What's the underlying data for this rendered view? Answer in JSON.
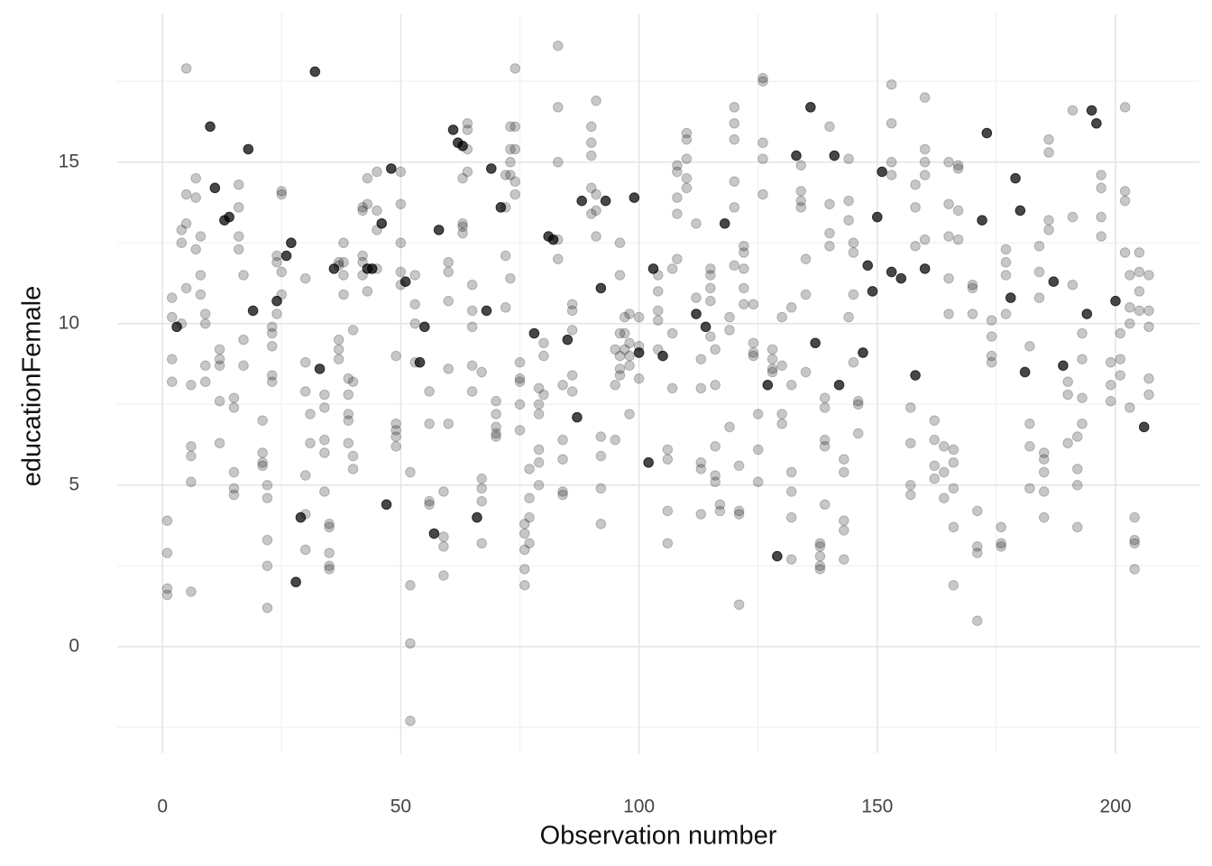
{
  "chart_data": {
    "type": "scatter",
    "x_label": "Observation number",
    "y_label": "educationFemale",
    "xlim": [
      -9.5,
      217.6
    ],
    "ylim": [
      -3.3,
      19.6
    ],
    "xticks": [
      0,
      50,
      100,
      150,
      200
    ],
    "yticks": [
      0,
      5,
      10,
      15
    ],
    "x_minor_ticks": [
      25,
      75,
      125,
      175
    ],
    "y_minor_ticks": [
      -2.5,
      2.5,
      7.5,
      12.5,
      17.5
    ],
    "grid": true,
    "series": [
      {
        "color": "#000000",
        "alpha": 0.22,
        "x": [
          1,
          1,
          1,
          1,
          2,
          2,
          2,
          2,
          4,
          4,
          4,
          5,
          5,
          5,
          5,
          6,
          6,
          6,
          6,
          6,
          7,
          7,
          7,
          8,
          8,
          8,
          9,
          9,
          9,
          9,
          12,
          12,
          12,
          12,
          12,
          15,
          15,
          15,
          15,
          15,
          16,
          16,
          16,
          16,
          17,
          17,
          17,
          21,
          21,
          21,
          21,
          22,
          22,
          22,
          22,
          22,
          23,
          23,
          23,
          23,
          23,
          24,
          24,
          24,
          25,
          25,
          25,
          25,
          30,
          30,
          30,
          30,
          30,
          30,
          31,
          31,
          34,
          34,
          34,
          34,
          34,
          35,
          35,
          35,
          35,
          35,
          37,
          37,
          37,
          37,
          37,
          38,
          38,
          38,
          38,
          39,
          39,
          39,
          39,
          39,
          40,
          40,
          40,
          40,
          42,
          42,
          42,
          42,
          42,
          43,
          43,
          43,
          45,
          45,
          45,
          45,
          49,
          49,
          49,
          49,
          49,
          50,
          50,
          50,
          50,
          50,
          52,
          52,
          52,
          52,
          53,
          53,
          53,
          53,
          56,
          56,
          56,
          56,
          59,
          59,
          59,
          59,
          60,
          60,
          60,
          60,
          60,
          63,
          63,
          63,
          63,
          64,
          64,
          64,
          64,
          65,
          65,
          65,
          65,
          65,
          67,
          67,
          67,
          67,
          67,
          70,
          70,
          70,
          70,
          70,
          72,
          72,
          72,
          72,
          73,
          73,
          73,
          73,
          73,
          74,
          74,
          74,
          74,
          74,
          75,
          75,
          75,
          75,
          75,
          76,
          76,
          76,
          76,
          76,
          77,
          77,
          77,
          77,
          79,
          79,
          79,
          79,
          79,
          79,
          80,
          80,
          80,
          83,
          83,
          83,
          83,
          83,
          84,
          84,
          84,
          84,
          84,
          86,
          86,
          86,
          86,
          86,
          90,
          90,
          90,
          90,
          90,
          91,
          91,
          91,
          91,
          92,
          92,
          92,
          92,
          95,
          95,
          95,
          96,
          96,
          96,
          96,
          96,
          96,
          97,
          97,
          97,
          98,
          98,
          98,
          98,
          98,
          100,
          100,
          100,
          104,
          104,
          104,
          104,
          104,
          106,
          106,
          106,
          106,
          107,
          107,
          107,
          108,
          108,
          108,
          108,
          108,
          110,
          110,
          110,
          110,
          110,
          112,
          112,
          113,
          113,
          113,
          113,
          113,
          115,
          115,
          115,
          115,
          115,
          116,
          116,
          116,
          116,
          116,
          117,
          117,
          119,
          119,
          119,
          120,
          120,
          120,
          120,
          120,
          120,
          121,
          121,
          121,
          121,
          122,
          122,
          122,
          122,
          122,
          124,
          124,
          124,
          124,
          125,
          125,
          125,
          126,
          126,
          126,
          126,
          126,
          128,
          128,
          128,
          128,
          130,
          130,
          130,
          130,
          132,
          132,
          132,
          132,
          132,
          132,
          134,
          134,
          134,
          134,
          135,
          135,
          135,
          138,
          138,
          138,
          138,
          138,
          139,
          139,
          139,
          139,
          139,
          140,
          140,
          140,
          140,
          143,
          143,
          143,
          143,
          143,
          144,
          144,
          144,
          144,
          145,
          145,
          145,
          145,
          146,
          146,
          146,
          153,
          153,
          153,
          153,
          157,
          157,
          157,
          157,
          158,
          158,
          158,
          160,
          160,
          160,
          160,
          160,
          162,
          162,
          162,
          162,
          164,
          164,
          164,
          165,
          165,
          165,
          165,
          165,
          166,
          166,
          166,
          166,
          166,
          167,
          167,
          167,
          167,
          170,
          170,
          170,
          171,
          171,
          171,
          171,
          174,
          174,
          174,
          174,
          176,
          176,
          176,
          177,
          177,
          177,
          177,
          182,
          182,
          182,
          182,
          184,
          184,
          184,
          185,
          185,
          185,
          185,
          185,
          186,
          186,
          186,
          186,
          190,
          190,
          190,
          191,
          191,
          191,
          192,
          192,
          192,
          192,
          193,
          193,
          193,
          193,
          197,
          197,
          197,
          197,
          199,
          199,
          199,
          201,
          201,
          201,
          202,
          202,
          202,
          202,
          203,
          203,
          203,
          203,
          204,
          204,
          204,
          204,
          205,
          205,
          205,
          205,
          207,
          207,
          207,
          207,
          207
        ],
        "y": [
          3.9,
          2.9,
          1.8,
          1.6,
          10.8,
          10.2,
          8.9,
          8.2,
          12.9,
          12.5,
          10.0,
          17.9,
          14.0,
          13.1,
          11.1,
          8.1,
          6.2,
          5.9,
          5.1,
          1.7,
          14.5,
          13.9,
          12.3,
          12.7,
          11.5,
          10.9,
          10.3,
          10.0,
          8.7,
          8.2,
          9.2,
          8.9,
          8.7,
          7.6,
          6.3,
          7.7,
          7.4,
          5.4,
          4.9,
          4.7,
          14.3,
          13.6,
          12.7,
          12.3,
          11.5,
          9.5,
          8.7,
          7.0,
          6.0,
          5.7,
          5.6,
          5.0,
          4.6,
          3.3,
          2.5,
          1.2,
          9.9,
          9.7,
          9.3,
          8.4,
          8.2,
          12.1,
          11.9,
          10.3,
          14.1,
          14.0,
          11.6,
          10.9,
          11.4,
          8.8,
          7.9,
          5.3,
          4.1,
          3.0,
          7.2,
          6.3,
          7.8,
          7.4,
          6.4,
          6.0,
          4.8,
          3.8,
          3.7,
          2.9,
          2.5,
          2.4,
          11.9,
          11.8,
          9.5,
          9.2,
          8.9,
          12.5,
          11.9,
          11.5,
          10.9,
          8.3,
          7.8,
          7.2,
          7.0,
          6.3,
          9.8,
          8.2,
          5.9,
          5.5,
          13.6,
          13.5,
          12.1,
          11.9,
          11.5,
          14.5,
          13.7,
          11.0,
          14.7,
          13.5,
          12.9,
          11.7,
          9.0,
          6.9,
          6.7,
          6.5,
          6.2,
          14.7,
          13.7,
          12.5,
          11.6,
          11.2,
          5.4,
          1.9,
          0.1,
          -2.3,
          11.5,
          10.6,
          10.0,
          8.8,
          7.9,
          6.9,
          4.5,
          4.4,
          4.8,
          3.4,
          3.1,
          2.2,
          11.9,
          11.6,
          10.7,
          8.6,
          6.9,
          14.5,
          13.1,
          13.0,
          12.8,
          16.2,
          16.0,
          15.4,
          14.7,
          11.2,
          10.4,
          9.9,
          8.7,
          7.9,
          8.5,
          5.2,
          4.9,
          4.5,
          3.2,
          7.6,
          7.2,
          6.8,
          6.6,
          6.5,
          14.6,
          13.6,
          12.1,
          10.5,
          16.1,
          15.4,
          15.0,
          14.6,
          11.4,
          17.9,
          16.1,
          15.4,
          14.4,
          14.0,
          8.8,
          8.3,
          8.2,
          7.5,
          6.7,
          3.8,
          3.5,
          3.0,
          2.4,
          1.9,
          5.5,
          4.6,
          4.0,
          3.2,
          8.0,
          7.5,
          7.2,
          6.1,
          5.7,
          5.0,
          9.4,
          9.0,
          7.8,
          18.6,
          16.7,
          15.0,
          12.6,
          12.0,
          8.1,
          6.4,
          5.8,
          4.8,
          4.7,
          10.6,
          10.4,
          9.8,
          8.4,
          7.9,
          16.1,
          15.6,
          15.2,
          14.2,
          13.4,
          16.9,
          14.0,
          13.5,
          12.7,
          6.5,
          5.9,
          4.9,
          3.8,
          9.2,
          8.1,
          6.4,
          12.5,
          11.5,
          9.7,
          9.0,
          8.6,
          8.4,
          10.2,
          9.7,
          9.2,
          10.3,
          9.4,
          9.0,
          8.7,
          7.2,
          10.2,
          9.3,
          8.3,
          11.5,
          11.0,
          10.4,
          10.1,
          9.2,
          6.1,
          5.8,
          4.2,
          3.2,
          11.7,
          9.7,
          8.0,
          14.9,
          14.7,
          13.9,
          13.4,
          12.0,
          15.9,
          15.7,
          15.1,
          14.5,
          14.2,
          13.1,
          10.8,
          8.9,
          8.0,
          5.7,
          5.5,
          4.1,
          11.7,
          11.5,
          11.1,
          10.7,
          9.6,
          9.2,
          8.1,
          6.2,
          5.3,
          5.1,
          4.4,
          4.2,
          10.2,
          9.8,
          6.8,
          16.7,
          16.2,
          15.7,
          14.4,
          13.6,
          11.8,
          5.6,
          4.2,
          4.1,
          1.3,
          12.4,
          12.2,
          11.7,
          11.1,
          10.6,
          10.6,
          9.4,
          9.1,
          9.0,
          7.2,
          6.1,
          5.1,
          17.6,
          17.5,
          15.6,
          15.1,
          14.0,
          9.2,
          8.9,
          8.6,
          8.5,
          10.2,
          8.7,
          7.2,
          6.9,
          10.5,
          8.1,
          5.4,
          4.8,
          4.0,
          2.7,
          14.9,
          14.1,
          13.8,
          13.6,
          12.0,
          10.9,
          8.5,
          3.2,
          3.1,
          2.8,
          2.5,
          2.4,
          7.7,
          7.4,
          6.4,
          6.2,
          4.4,
          16.1,
          13.7,
          12.8,
          12.4,
          5.8,
          5.4,
          3.9,
          3.6,
          2.7,
          15.1,
          13.8,
          13.2,
          10.2,
          12.5,
          12.2,
          10.9,
          8.8,
          7.6,
          7.5,
          6.6,
          17.4,
          16.2,
          15.0,
          14.6,
          7.4,
          6.3,
          5.0,
          4.7,
          14.3,
          13.6,
          12.4,
          17.0,
          15.4,
          15.0,
          14.6,
          12.6,
          7.0,
          6.4,
          5.6,
          5.2,
          6.2,
          5.4,
          4.6,
          15.0,
          13.7,
          12.7,
          11.4,
          10.3,
          6.1,
          5.7,
          4.9,
          3.7,
          1.9,
          14.9,
          14.8,
          13.5,
          12.6,
          11.2,
          11.1,
          10.3,
          4.2,
          3.1,
          2.9,
          0.8,
          10.1,
          9.6,
          9.0,
          8.8,
          3.7,
          3.2,
          3.1,
          12.3,
          11.9,
          11.5,
          10.3,
          9.3,
          6.9,
          6.2,
          4.9,
          12.4,
          11.6,
          10.8,
          6.0,
          5.8,
          5.4,
          4.8,
          4.0,
          15.7,
          15.3,
          13.2,
          12.9,
          8.2,
          7.8,
          6.3,
          16.6,
          13.3,
          11.2,
          6.5,
          5.5,
          5.0,
          3.7,
          9.7,
          8.9,
          7.7,
          6.9,
          14.6,
          14.2,
          13.3,
          12.7,
          8.8,
          8.1,
          7.6,
          9.7,
          8.9,
          8.4,
          16.7,
          14.1,
          13.8,
          12.2,
          11.5,
          10.5,
          10.0,
          7.4,
          4.0,
          3.3,
          3.2,
          2.4,
          12.2,
          11.6,
          11.0,
          10.4,
          11.5,
          10.4,
          9.9,
          8.3,
          7.8
        ]
      },
      {
        "color": "#000000",
        "alpha": 0.72,
        "x": [
          3,
          10,
          11,
          13,
          14,
          18,
          19,
          24,
          26,
          27,
          28,
          29,
          32,
          33,
          36,
          43,
          44,
          46,
          47,
          48,
          51,
          54,
          55,
          57,
          58,
          61,
          62,
          63,
          66,
          68,
          69,
          71,
          78,
          81,
          82,
          85,
          87,
          88,
          92,
          93,
          99,
          100,
          102,
          103,
          105,
          112,
          114,
          118,
          127,
          129,
          133,
          136,
          137,
          141,
          142,
          147,
          148,
          149,
          150,
          151,
          153,
          155,
          158,
          160,
          172,
          173,
          178,
          179,
          180,
          181,
          187,
          189,
          194,
          195,
          196,
          200,
          206
        ],
        "y": [
          9.9,
          16.1,
          14.2,
          13.2,
          13.3,
          15.4,
          10.4,
          10.7,
          12.1,
          12.5,
          2.0,
          4.0,
          17.8,
          8.6,
          11.7,
          11.7,
          11.7,
          13.1,
          4.4,
          14.8,
          11.3,
          8.8,
          9.9,
          3.5,
          12.9,
          16.0,
          15.6,
          15.5,
          4.0,
          10.4,
          14.8,
          13.6,
          9.7,
          12.7,
          12.6,
          9.5,
          7.1,
          13.8,
          11.1,
          13.8,
          13.9,
          9.1,
          5.7,
          11.7,
          9.0,
          10.3,
          9.9,
          13.1,
          8.1,
          2.8,
          15.2,
          16.7,
          9.4,
          15.2,
          8.1,
          9.1,
          11.8,
          11.0,
          13.3,
          14.7,
          11.6,
          11.4,
          8.4,
          11.7,
          13.2,
          15.9,
          10.8,
          14.5,
          13.5,
          8.5,
          11.3,
          8.7,
          10.3,
          16.6,
          16.2,
          10.7,
          6.8
        ]
      }
    ]
  }
}
